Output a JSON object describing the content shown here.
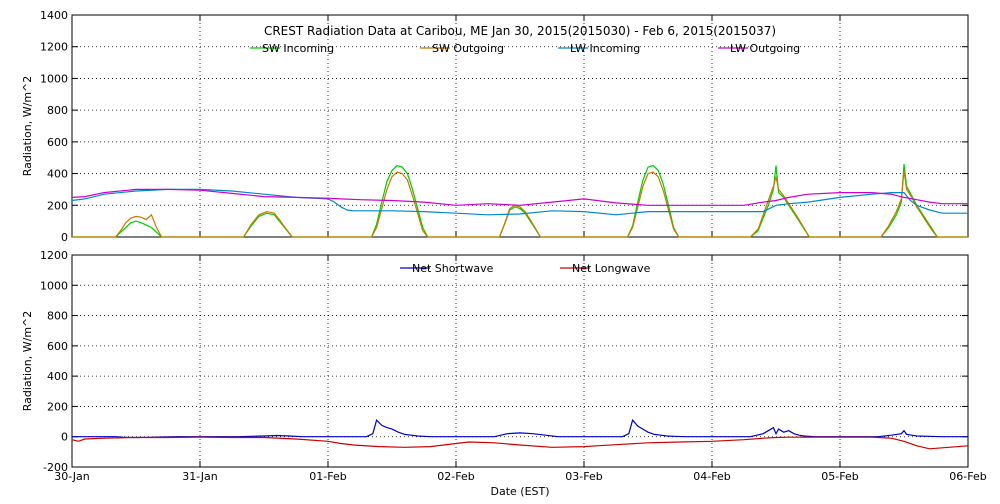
{
  "chart_data": [
    {
      "type": "line",
      "title": "CREST Radiation Data at Caribou, ME   Jan 30, 2015(2015030) - Feb  6, 2015(2015037)",
      "ylabel": "Radiation, W/m^2",
      "xlabel": "",
      "ylim": [
        0,
        1400
      ],
      "yticks": [
        0,
        200,
        400,
        600,
        800,
        1000,
        1200,
        1400
      ],
      "xlim": [
        0,
        7
      ],
      "grid": true,
      "legend": "top",
      "series": [
        {
          "name": "SW Incoming",
          "color": "#00cc00",
          "x": [
            0,
            0.34,
            0.38,
            0.42,
            0.46,
            0.5,
            0.54,
            0.58,
            0.62,
            0.66,
            0.7,
            0.74,
            0.78,
            0.82,
            1.34,
            1.4,
            1.46,
            1.52,
            1.58,
            1.62,
            1.66,
            1.72,
            1.78,
            2.34,
            2.38,
            2.42,
            2.46,
            2.5,
            2.54,
            2.58,
            2.62,
            2.66,
            2.7,
            2.74,
            2.78,
            2.82,
            3.34,
            3.38,
            3.42,
            3.46,
            3.5,
            3.54,
            3.58,
            3.62,
            3.66,
            3.72,
            3.78,
            4.34,
            4.38,
            4.42,
            4.46,
            4.5,
            4.54,
            4.58,
            4.62,
            4.66,
            4.7,
            4.74,
            4.78,
            4.82,
            5.3,
            5.36,
            5.4,
            5.44,
            5.48,
            5.5,
            5.52,
            5.56,
            5.6,
            5.64,
            5.68,
            5.72,
            5.76,
            5.8,
            6.32,
            6.38,
            6.44,
            6.48,
            6.5,
            6.52,
            6.56,
            6.6,
            6.64,
            6.68,
            6.72,
            6.76,
            6.82,
            7
          ],
          "y": [
            0,
            0,
            30,
            60,
            90,
            100,
            90,
            75,
            60,
            30,
            0,
            0,
            0,
            0,
            0,
            70,
            130,
            150,
            140,
            100,
            60,
            0,
            0,
            0,
            80,
            220,
            350,
            420,
            450,
            440,
            400,
            300,
            180,
            60,
            0,
            0,
            0,
            80,
            170,
            190,
            180,
            150,
            100,
            50,
            0,
            0,
            0,
            0,
            70,
            220,
            360,
            440,
            450,
            420,
            330,
            200,
            60,
            0,
            0,
            0,
            0,
            40,
            120,
            200,
            300,
            450,
            280,
            250,
            200,
            150,
            100,
            50,
            0,
            0,
            0,
            60,
            140,
            220,
            460,
            320,
            260,
            200,
            150,
            100,
            50,
            0,
            0,
            0
          ]
        },
        {
          "name": "SW Outgoing",
          "color": "#cc7700",
          "x": [
            0,
            0.34,
            0.38,
            0.42,
            0.46,
            0.5,
            0.54,
            0.58,
            0.62,
            0.66,
            0.7,
            0.74,
            0.78,
            0.82,
            1.34,
            1.4,
            1.46,
            1.52,
            1.58,
            1.62,
            1.66,
            1.72,
            1.78,
            2.34,
            2.38,
            2.42,
            2.46,
            2.5,
            2.54,
            2.58,
            2.62,
            2.66,
            2.7,
            2.74,
            2.78,
            2.82,
            3.34,
            3.38,
            3.42,
            3.46,
            3.5,
            3.54,
            3.58,
            3.62,
            3.66,
            3.72,
            3.78,
            4.34,
            4.38,
            4.42,
            4.46,
            4.5,
            4.54,
            4.58,
            4.62,
            4.66,
            4.7,
            4.74,
            4.78,
            4.82,
            5.3,
            5.36,
            5.4,
            5.44,
            5.48,
            5.5,
            5.52,
            5.56,
            5.6,
            5.64,
            5.68,
            5.72,
            5.76,
            5.8,
            6.32,
            6.38,
            6.44,
            6.48,
            6.5,
            6.52,
            6.56,
            6.6,
            6.64,
            6.68,
            6.72,
            6.76,
            6.82,
            7
          ],
          "y": [
            0,
            0,
            40,
            90,
            120,
            130,
            125,
            110,
            140,
            60,
            0,
            0,
            0,
            0,
            0,
            80,
            140,
            160,
            150,
            110,
            65,
            0,
            0,
            0,
            60,
            180,
            300,
            380,
            410,
            400,
            360,
            260,
            150,
            40,
            0,
            0,
            0,
            85,
            180,
            200,
            190,
            160,
            110,
            55,
            0,
            0,
            0,
            0,
            60,
            190,
            320,
            400,
            410,
            380,
            290,
            170,
            50,
            0,
            0,
            0,
            0,
            50,
            140,
            230,
            320,
            380,
            300,
            260,
            210,
            160,
            110,
            55,
            0,
            0,
            0,
            70,
            160,
            240,
            420,
            300,
            250,
            190,
            140,
            90,
            40,
            0,
            0,
            0
          ]
        },
        {
          "name": "LW Incoming",
          "color": "#0088cc",
          "x": [
            0,
            0.1,
            0.25,
            0.5,
            0.75,
            1,
            1.25,
            1.5,
            1.75,
            2,
            2.05,
            2.1,
            2.15,
            2.2,
            2.5,
            2.75,
            3,
            3.25,
            3.5,
            3.75,
            4,
            4.25,
            4.5,
            4.75,
            5,
            5.25,
            5.4,
            5.5,
            5.6,
            5.75,
            6,
            6.25,
            6.4,
            6.5,
            6.55,
            6.6,
            6.7,
            6.8,
            7
          ],
          "y": [
            230,
            240,
            270,
            290,
            300,
            300,
            290,
            270,
            250,
            240,
            220,
            190,
            170,
            165,
            165,
            160,
            150,
            140,
            145,
            165,
            160,
            140,
            160,
            160,
            160,
            160,
            160,
            200,
            210,
            220,
            250,
            270,
            280,
            280,
            230,
            200,
            170,
            150,
            150
          ]
        },
        {
          "name": "LW Outgoing",
          "color": "#cc00cc",
          "x": [
            0,
            0.1,
            0.25,
            0.5,
            0.75,
            1,
            1.25,
            1.5,
            1.75,
            2,
            2.1,
            2.25,
            2.5,
            2.75,
            3,
            3.25,
            3.5,
            3.75,
            4,
            4.25,
            4.5,
            4.75,
            5,
            5.25,
            5.4,
            5.5,
            5.6,
            5.75,
            6,
            6.25,
            6.4,
            6.5,
            6.6,
            6.7,
            6.8,
            7
          ],
          "y": [
            250,
            255,
            280,
            300,
            300,
            295,
            275,
            255,
            250,
            245,
            240,
            235,
            230,
            220,
            200,
            210,
            200,
            220,
            240,
            215,
            200,
            200,
            200,
            200,
            220,
            230,
            250,
            270,
            280,
            280,
            270,
            250,
            235,
            220,
            210,
            210
          ]
        }
      ]
    },
    {
      "type": "line",
      "title": "",
      "ylabel": "Radiation, W/m^2",
      "xlabel": "Date (EST)",
      "ylim": [
        -200,
        1200
      ],
      "yticks": [
        -200,
        0,
        200,
        400,
        600,
        800,
        1000,
        1200
      ],
      "xlim": [
        0,
        7
      ],
      "categories": [
        "30-Jan",
        "31-Jan",
        "01-Feb",
        "02-Feb",
        "03-Feb",
        "04-Feb",
        "05-Feb",
        "06-Feb"
      ],
      "grid": true,
      "legend": "top",
      "series": [
        {
          "name": "Net Shortwave",
          "color": "#0000cc",
          "x": [
            0,
            0.34,
            0.4,
            0.5,
            0.6,
            0.7,
            0.82,
            1.3,
            1.5,
            1.6,
            1.7,
            1.8,
            2.3,
            2.35,
            2.38,
            2.42,
            2.46,
            2.5,
            2.55,
            2.6,
            2.65,
            2.7,
            2.8,
            3.3,
            3.4,
            3.5,
            3.6,
            3.7,
            3.8,
            4.3,
            4.35,
            4.38,
            4.42,
            4.46,
            4.5,
            4.55,
            4.6,
            4.65,
            4.7,
            4.8,
            5.3,
            5.4,
            5.44,
            5.48,
            5.5,
            5.52,
            5.56,
            5.6,
            5.64,
            5.68,
            5.72,
            5.8,
            6.3,
            6.4,
            6.48,
            6.5,
            6.52,
            6.56,
            6.6,
            6.8,
            7
          ],
          "y": [
            0,
            0,
            -3,
            -5,
            -4,
            -2,
            0,
            0,
            5,
            8,
            5,
            0,
            0,
            20,
            110,
            75,
            60,
            50,
            30,
            15,
            10,
            5,
            0,
            0,
            20,
            25,
            20,
            10,
            0,
            0,
            20,
            110,
            70,
            50,
            30,
            15,
            10,
            5,
            3,
            0,
            0,
            20,
            40,
            60,
            20,
            50,
            30,
            40,
            20,
            10,
            5,
            0,
            0,
            10,
            20,
            40,
            15,
            10,
            5,
            0,
            0
          ]
        },
        {
          "name": "Net Longwave",
          "color": "#cc0000",
          "x": [
            0,
            0.05,
            0.1,
            0.25,
            0.5,
            0.75,
            1,
            1.25,
            1.5,
            1.75,
            2,
            2.1,
            2.2,
            2.4,
            2.6,
            2.8,
            3,
            3.1,
            3.3,
            3.5,
            3.75,
            4,
            4.1,
            4.3,
            4.5,
            4.75,
            5,
            5.25,
            5.4,
            5.5,
            5.6,
            5.75,
            6,
            6.25,
            6.4,
            6.5,
            6.6,
            6.7,
            6.85,
            7
          ],
          "y": [
            -20,
            -30,
            -15,
            -10,
            -5,
            -5,
            -3,
            -5,
            -5,
            -15,
            -30,
            -45,
            -55,
            -65,
            -70,
            -65,
            -45,
            -35,
            -40,
            -55,
            -70,
            -65,
            -60,
            -50,
            -40,
            -35,
            -30,
            -20,
            -10,
            -5,
            -3,
            -3,
            -3,
            -3,
            -10,
            -30,
            -60,
            -80,
            -70,
            -60
          ]
        }
      ]
    }
  ]
}
